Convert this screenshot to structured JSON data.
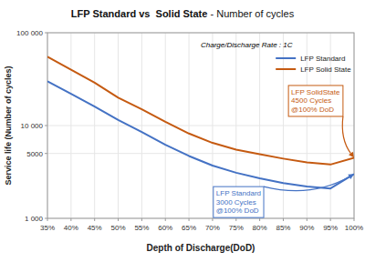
{
  "chart_data": {
    "type": "line",
    "title": "LFP Standard vs  Solid State",
    "subtitle": " - Number of cycles",
    "x_label": "Depth of Discharge(DoD)",
    "y_label": "Service life (Number of cycles)",
    "x": [
      0.35,
      0.4,
      0.45,
      0.5,
      0.55,
      0.6,
      0.65,
      0.7,
      0.75,
      0.8,
      0.85,
      0.9,
      0.95,
      1.0
    ],
    "series": [
      {
        "name": "LFP Standard",
        "color": "#4472C4",
        "values": [
          30000,
          22000,
          16000,
          11500,
          8500,
          6200,
          4700,
          3700,
          3100,
          2700,
          2400,
          2200,
          2100,
          3000
        ]
      },
      {
        "name": "LFP Solid State",
        "color": "#C55A11",
        "values": [
          55000,
          40000,
          29000,
          20000,
          15000,
          11000,
          8200,
          6500,
          5500,
          4900,
          4400,
          4000,
          3800,
          4500
        ]
      }
    ],
    "xlim": [
      0.35,
      1.0
    ],
    "xticks": [
      {
        "value": 0.35,
        "label": "35%"
      },
      {
        "value": 0.4,
        "label": "40%"
      },
      {
        "value": 0.45,
        "label": "45%"
      },
      {
        "value": 0.5,
        "label": "50%"
      },
      {
        "value": 0.55,
        "label": "55%"
      },
      {
        "value": 0.6,
        "label": "60%"
      },
      {
        "value": 0.65,
        "label": "65%"
      },
      {
        "value": 0.7,
        "label": "70%"
      },
      {
        "value": 0.75,
        "label": "75%"
      },
      {
        "value": 0.8,
        "label": "80%"
      },
      {
        "value": 0.85,
        "label": "85%"
      },
      {
        "value": 0.9,
        "label": "90%"
      },
      {
        "value": 0.95,
        "label": "95%"
      },
      {
        "value": 1.0,
        "label": "100%"
      }
    ],
    "ylim": [
      1000,
      100000
    ],
    "yticks": [
      {
        "value": 1000,
        "label": "1 000"
      },
      5000,
      {
        "value": 10000,
        "label": "10 000"
      },
      {
        "value": 100000,
        "label": "100 000"
      }
    ],
    "log": "y",
    "grid": true,
    "legend": "top-right",
    "annotations": [
      {
        "text": "Charge/Discharge Rate : 1C"
      },
      {
        "text": "LFP SolidState\n4500 Cycles\n@100% DoD",
        "x": 1.0,
        "y": 4500,
        "color": "#C55A11"
      },
      {
        "text": "LFP Standard\n3000 Cycles\n@100% DoD",
        "x": 1.0,
        "y": 3000,
        "color": "#4472C4"
      }
    ]
  }
}
